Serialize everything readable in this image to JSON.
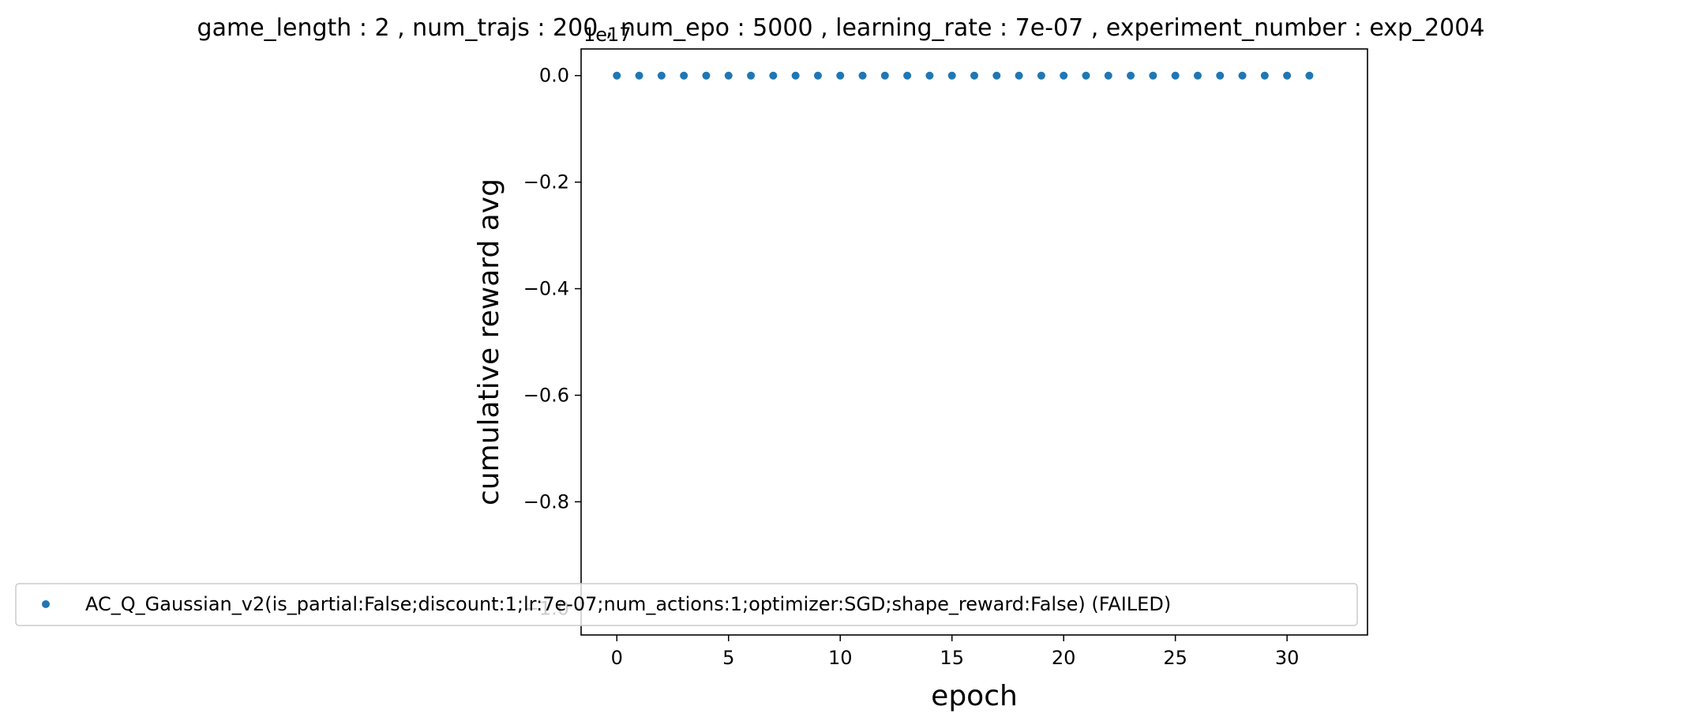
{
  "chart_data": {
    "type": "scatter",
    "title": "game_length : 2 , num_trajs : 200 , num_epo : 5000 , learning_rate : 7e-07 , experiment_number : exp_2004",
    "xlabel": "epoch",
    "ylabel": "cumulative reward avg",
    "offset_label": "1e17",
    "xlim": [
      -1.6,
      33.6
    ],
    "ylim": [
      -1.05,
      0.05
    ],
    "xticks": [
      0,
      5,
      10,
      15,
      20,
      25,
      30
    ],
    "xtick_labels": [
      "0",
      "5",
      "10",
      "15",
      "20",
      "25",
      "30"
    ],
    "yticks": [
      0.0,
      -0.2,
      -0.4,
      -0.6,
      -0.8,
      -1.0
    ],
    "ytick_labels": [
      "0.0",
      "−0.2",
      "−0.4",
      "−0.6",
      "−0.8",
      "−1.0"
    ],
    "grid": false,
    "legend_position": "lower-center",
    "color": "#1f77b4",
    "series": [
      {
        "name": "AC_Q_Gaussian_v2(is_partial:False;discount:1;lr:7e-07;num_actions:1;optimizer:SGD;shape_reward:False) (FAILED)",
        "x": [
          0,
          1,
          2,
          3,
          4,
          5,
          6,
          7,
          8,
          9,
          10,
          11,
          12,
          13,
          14,
          15,
          16,
          17,
          18,
          19,
          20,
          21,
          22,
          23,
          24,
          25,
          26,
          27,
          28,
          29,
          30,
          31
        ],
        "y": [
          0,
          0,
          0,
          0,
          0,
          0,
          0,
          0,
          0,
          0,
          0,
          0,
          0,
          0,
          0,
          0,
          0,
          0,
          0,
          0,
          0,
          0,
          0,
          0,
          0,
          0,
          0,
          0,
          0,
          0,
          0,
          0
        ]
      }
    ]
  }
}
